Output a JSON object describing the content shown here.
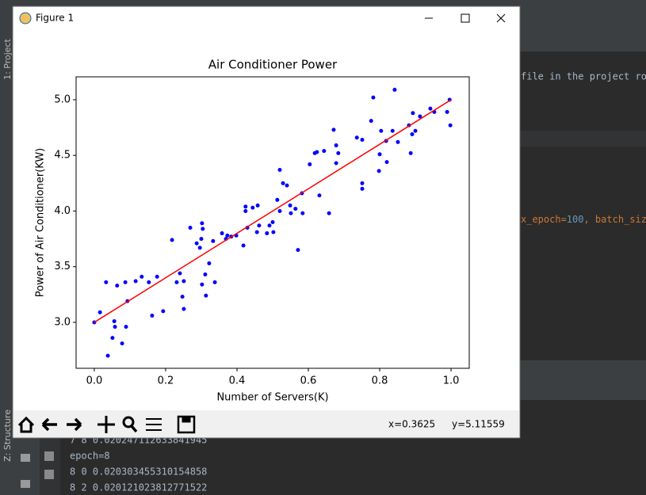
{
  "window": {
    "title": "Figure 1"
  },
  "chart_data": {
    "type": "scatter",
    "title": "Air Conditioner Power",
    "x_label": "Number of Servers(K)",
    "y_label": "Power of Air Conditioner(KW)",
    "x": [
      0.0,
      0.016,
      0.033,
      0.038,
      0.051,
      0.056,
      0.058,
      0.064,
      0.078,
      0.087,
      0.089,
      0.093,
      0.116,
      0.133,
      0.153,
      0.162,
      0.176,
      0.193,
      0.218,
      0.231,
      0.24,
      0.247,
      0.251,
      0.251,
      0.269,
      0.287,
      0.296,
      0.3,
      0.302,
      0.302,
      0.304,
      0.311,
      0.313,
      0.322,
      0.333,
      0.338,
      0.358,
      0.369,
      0.373,
      0.384,
      0.398,
      0.418,
      0.424,
      0.424,
      0.429,
      0.444,
      0.456,
      0.458,
      0.462,
      0.484,
      0.491,
      0.5,
      0.502,
      0.513,
      0.52,
      0.52,
      0.529,
      0.54,
      0.549,
      0.551,
      0.564,
      0.571,
      0.582,
      0.584,
      0.604,
      0.618,
      0.624,
      0.631,
      0.644,
      0.658,
      0.671,
      0.678,
      0.678,
      0.684,
      0.736,
      0.751,
      0.751,
      0.751,
      0.776,
      0.782,
      0.798,
      0.8,
      0.804,
      0.818,
      0.82,
      0.836,
      0.842,
      0.851,
      0.882,
      0.887,
      0.891,
      0.893,
      0.9,
      0.913,
      0.942,
      0.953,
      0.989,
      0.996,
      0.998
    ],
    "values": [
      3.0,
      3.09,
      3.36,
      2.7,
      2.86,
      3.01,
      2.96,
      3.33,
      2.81,
      3.36,
      2.96,
      3.19,
      3.37,
      3.41,
      3.36,
      3.06,
      3.41,
      3.1,
      3.74,
      3.36,
      3.44,
      3.23,
      3.37,
      3.12,
      3.85,
      3.71,
      3.67,
      3.75,
      3.34,
      3.89,
      3.84,
      3.43,
      3.24,
      3.53,
      3.73,
      3.36,
      3.8,
      3.75,
      3.78,
      3.77,
      3.78,
      3.69,
      4.04,
      4.0,
      3.85,
      4.03,
      3.81,
      4.05,
      3.87,
      3.8,
      3.87,
      3.9,
      3.81,
      4.1,
      4.37,
      4.0,
      4.25,
      4.23,
      4.05,
      3.98,
      4.02,
      3.65,
      4.16,
      3.98,
      4.42,
      4.52,
      4.53,
      4.14,
      4.54,
      3.98,
      4.73,
      4.59,
      4.43,
      4.52,
      4.66,
      4.64,
      4.25,
      4.2,
      4.81,
      5.02,
      4.36,
      4.51,
      4.72,
      4.63,
      4.44,
      4.72,
      5.09,
      4.62,
      4.77,
      4.52,
      4.69,
      4.88,
      4.72,
      4.85,
      4.92,
      4.89,
      4.89,
      5.0,
      4.77
    ],
    "color": "#0000ff",
    "fit_line": {
      "x": [
        0,
        1
      ],
      "values": [
        3,
        5
      ],
      "color": "#ff0000"
    },
    "xlim": [
      -0.051,
      1.051
    ],
    "ylim": [
      2.587,
      5.206
    ],
    "xticks": [
      {
        "value": 0,
        "label": "0.0"
      },
      0.2,
      0.4,
      0.6,
      0.8,
      {
        "value": 1,
        "label": "1.0"
      }
    ],
    "yticks": [
      {
        "value": 3,
        "label": "3.0"
      },
      3.5,
      {
        "value": 4,
        "label": "4.0"
      },
      4.5,
      {
        "value": 5,
        "label": "5.0"
      }
    ],
    "grid": false
  },
  "toolbar": {
    "x_readout": "x=0.3625",
    "y_readout": "y=5.11559"
  },
  "ide": {
    "side_tabs": [
      "1: Project",
      "Z: Structure"
    ],
    "editor_line": "file in the project roo",
    "code_tokens": [
      {
        "text": "x_epoch=",
        "color": "#cc7832"
      },
      {
        "text": "100",
        "color": "#6897bb"
      },
      {
        "text": ", batch_size",
        "color": "#cc7832"
      }
    ],
    "console": [
      "7 8 0.020247112633841945",
      "epoch=8",
      "8 0 0.020303455310154858",
      "8 2 0.020121023812771522"
    ]
  }
}
